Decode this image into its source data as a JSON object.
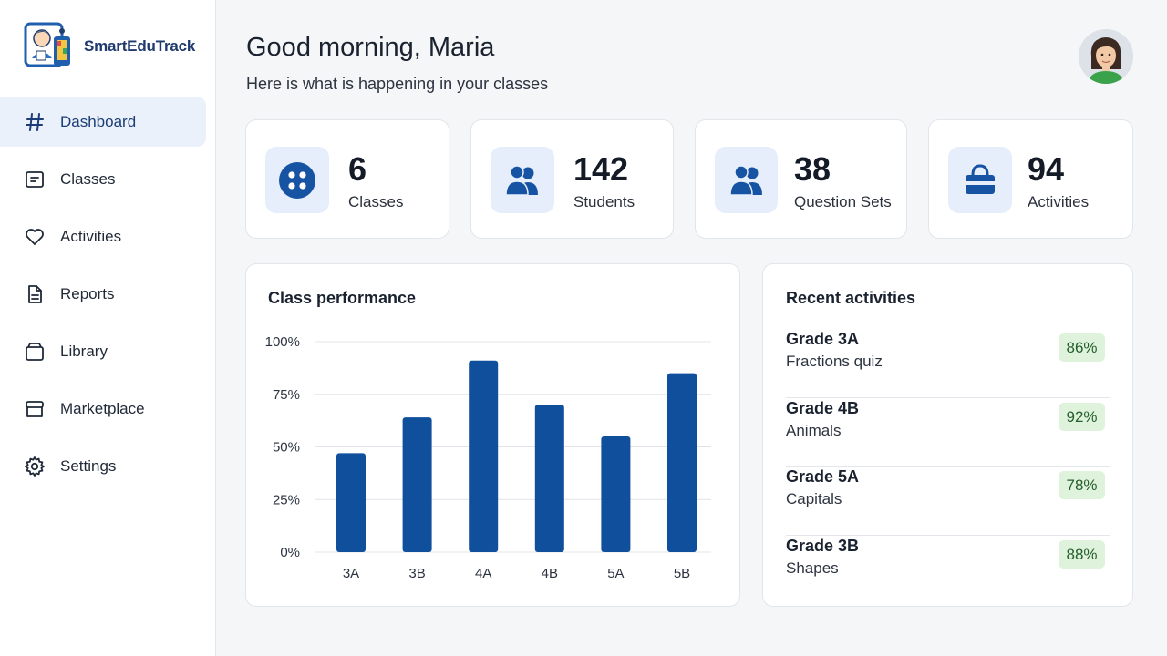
{
  "app": {
    "name": "SmartEduTrack"
  },
  "sidebar": {
    "items": [
      {
        "label": "Dashboard",
        "icon": "hash-icon",
        "active": true
      },
      {
        "label": "Classes",
        "icon": "clipboard-icon",
        "active": false
      },
      {
        "label": "Activities",
        "icon": "heart-icon",
        "active": false
      },
      {
        "label": "Reports",
        "icon": "document-icon",
        "active": false
      },
      {
        "label": "Library",
        "icon": "folder-icon",
        "active": false
      },
      {
        "label": "Marketplace",
        "icon": "store-icon",
        "active": false
      },
      {
        "label": "Settings",
        "icon": "gear-icon",
        "active": false
      }
    ]
  },
  "header": {
    "greeting": "Good morning, Maria",
    "subtitle": "Here is what is happening in your classes"
  },
  "stats": [
    {
      "value": "6",
      "label": "Classes",
      "icon": "grid-dots-icon"
    },
    {
      "value": "142",
      "label": "Students",
      "icon": "users-icon"
    },
    {
      "value": "38",
      "label": "Question Sets",
      "icon": "users-icon"
    },
    {
      "value": "94",
      "label": "Activities",
      "icon": "basket-icon"
    }
  ],
  "chart_panel": {
    "title": "Class performance"
  },
  "chart_data": {
    "type": "bar",
    "title": "Class performance",
    "categories": [
      "3A",
      "3B",
      "4A",
      "4B",
      "5A",
      "5B"
    ],
    "values": [
      47,
      64,
      91,
      70,
      55,
      85
    ],
    "y_ticks": [
      "100%",
      "75%",
      "50%",
      "25%",
      "0%"
    ],
    "ylim": [
      0,
      100
    ],
    "grid": true,
    "bar_color": "#0f4f9c"
  },
  "activities_panel": {
    "title": "Recent activities",
    "items": [
      {
        "title": "Grade 3A",
        "subtitle": "Fractions quiz",
        "score": "86%"
      },
      {
        "title": "Grade 4B",
        "subtitle": "Animals",
        "score": "92%"
      },
      {
        "title": "Grade 5A",
        "subtitle": "Capitals",
        "score": "78%"
      },
      {
        "title": "Grade 3B",
        "subtitle": "Shapes",
        "score": "88%"
      }
    ]
  },
  "colors": {
    "accent": "#1753a3",
    "active_nav_bg": "#eaf1fb",
    "badge_bg": "#dff2dc"
  }
}
